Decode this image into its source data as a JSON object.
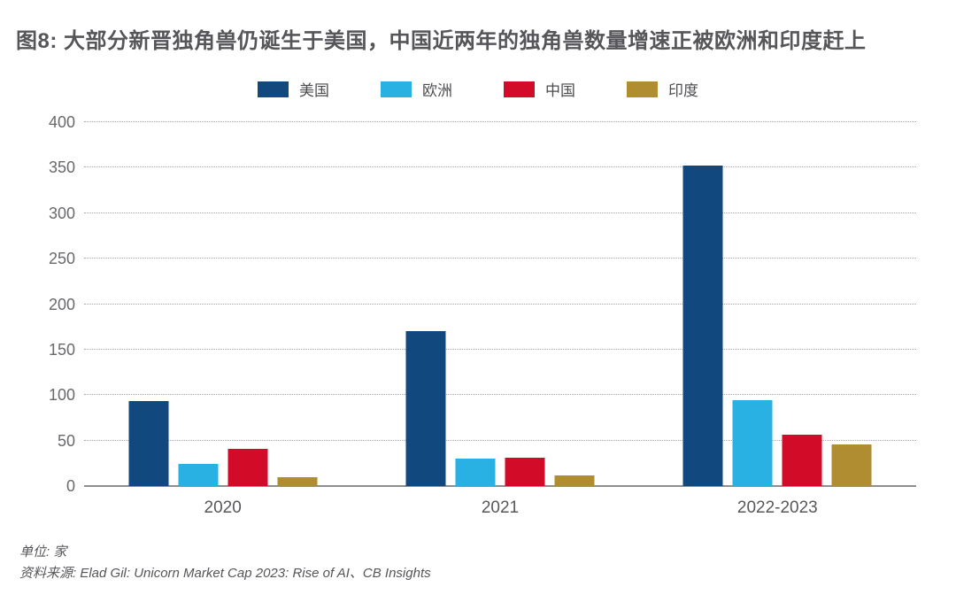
{
  "figure": {
    "title": "图8: 大部分新晋独角兽仍诞生于美国，中国近两年的独角兽数量增速正被欧洲和印度赶上",
    "title_color": "#56565a"
  },
  "footer": {
    "unit": "单位: 家",
    "source": "资料来源: Elad Gil: Unicorn Market Cap 2023: Rise of AI、CB Insights"
  },
  "chart_data": {
    "type": "bar",
    "title": "图8: 大部分新晋独角兽仍诞生于美国，中国近两年的独角兽数量增速正被欧洲和印度赶上",
    "unit": "家",
    "categories": [
      "2020",
      "2021",
      "2022-2023"
    ],
    "series": [
      {
        "key": "us",
        "name": "美国",
        "color": "#11497e",
        "values": [
          93,
          170,
          352
        ]
      },
      {
        "key": "europe",
        "name": "欧洲",
        "color": "#29b1e4",
        "values": [
          24,
          30,
          94
        ]
      },
      {
        "key": "china",
        "name": "中国",
        "color": "#d20c28",
        "values": [
          41,
          31,
          56
        ]
      },
      {
        "key": "india",
        "name": "印度",
        "color": "#b08d30",
        "values": [
          10,
          12,
          46
        ]
      }
    ],
    "ylim": [
      0,
      400
    ],
    "yticks": [
      400,
      350,
      300,
      250,
      200,
      150,
      100,
      50,
      0
    ],
    "grid": "horizontal-dotted",
    "legend_position": "top-center",
    "axis_colors": {
      "tick_label": "#69696d",
      "category_label": "#58585c",
      "baseline": "#8f8f8f",
      "gridline": "#a5a5a5"
    }
  }
}
